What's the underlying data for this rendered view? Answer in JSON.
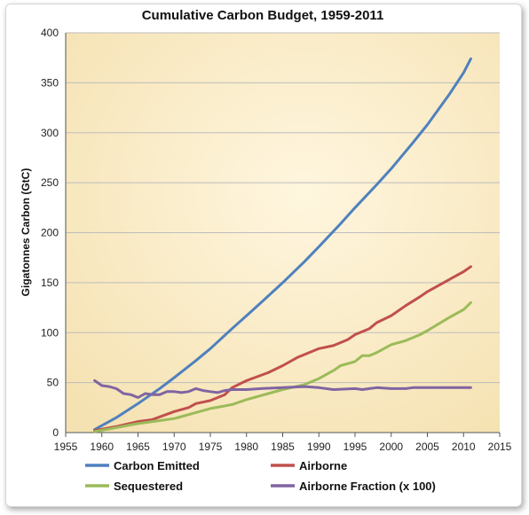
{
  "chart_data": {
    "type": "line",
    "title": "Cumulative Carbon Budget, 1959-2011",
    "xlabel": "",
    "ylabel": "Gigatonnes Carbon (GtC)",
    "xlim": [
      1955,
      2015
    ],
    "ylim": [
      0,
      400
    ],
    "x_ticks": [
      1955,
      1960,
      1965,
      1970,
      1975,
      1980,
      1985,
      1990,
      1995,
      2000,
      2005,
      2010,
      2015
    ],
    "y_ticks": [
      0,
      50,
      100,
      150,
      200,
      250,
      300,
      350,
      400
    ],
    "grid": "horizontal",
    "legend_position": "bottom",
    "series": [
      {
        "name": "Carbon Emitted",
        "color": "#4f81bd",
        "points": [
          [
            1959,
            3
          ],
          [
            1962,
            15
          ],
          [
            1965,
            29
          ],
          [
            1968,
            44
          ],
          [
            1970,
            55
          ],
          [
            1973,
            72
          ],
          [
            1975,
            84
          ],
          [
            1978,
            104
          ],
          [
            1980,
            117
          ],
          [
            1982,
            130
          ],
          [
            1985,
            150
          ],
          [
            1988,
            171
          ],
          [
            1990,
            186
          ],
          [
            1993,
            209
          ],
          [
            1995,
            225
          ],
          [
            1998,
            248
          ],
          [
            2000,
            264
          ],
          [
            2003,
            290
          ],
          [
            2005,
            308
          ],
          [
            2008,
            338
          ],
          [
            2010,
            360
          ],
          [
            2011,
            374
          ]
        ]
      },
      {
        "name": "Airborne",
        "color": "#c0504d",
        "points": [
          [
            1959,
            2
          ],
          [
            1962,
            6
          ],
          [
            1965,
            11
          ],
          [
            1967,
            13
          ],
          [
            1970,
            21
          ],
          [
            1972,
            25
          ],
          [
            1973,
            29
          ],
          [
            1975,
            32
          ],
          [
            1977,
            38
          ],
          [
            1978,
            45
          ],
          [
            1980,
            52
          ],
          [
            1983,
            60
          ],
          [
            1985,
            67
          ],
          [
            1987,
            75
          ],
          [
            1990,
            84
          ],
          [
            1992,
            87
          ],
          [
            1994,
            93
          ],
          [
            1995,
            98
          ],
          [
            1997,
            104
          ],
          [
            1998,
            110
          ],
          [
            2000,
            117
          ],
          [
            2002,
            127
          ],
          [
            2004,
            136
          ],
          [
            2005,
            141
          ],
          [
            2008,
            153
          ],
          [
            2010,
            161
          ],
          [
            2011,
            166
          ]
        ]
      },
      {
        "name": "Sequestered",
        "color": "#9bbb59",
        "points": [
          [
            1959,
            1
          ],
          [
            1962,
            5
          ],
          [
            1965,
            9
          ],
          [
            1968,
            12
          ],
          [
            1970,
            14
          ],
          [
            1971,
            16
          ],
          [
            1972,
            18
          ],
          [
            1975,
            24
          ],
          [
            1978,
            28
          ],
          [
            1980,
            33
          ],
          [
            1983,
            39
          ],
          [
            1985,
            43
          ],
          [
            1988,
            48
          ],
          [
            1990,
            54
          ],
          [
            1992,
            62
          ],
          [
            1993,
            67
          ],
          [
            1995,
            71
          ],
          [
            1996,
            77
          ],
          [
            1997,
            77
          ],
          [
            1998,
            80
          ],
          [
            2000,
            88
          ],
          [
            2002,
            92
          ],
          [
            2004,
            98
          ],
          [
            2005,
            102
          ],
          [
            2008,
            115
          ],
          [
            2010,
            123
          ],
          [
            2011,
            130
          ]
        ]
      },
      {
        "name": "Airborne Fraction (x 100)",
        "color": "#8064a2",
        "points": [
          [
            1959,
            52
          ],
          [
            1960,
            47
          ],
          [
            1961,
            46
          ],
          [
            1962,
            44
          ],
          [
            1963,
            39
          ],
          [
            1964,
            38
          ],
          [
            1965,
            35
          ],
          [
            1966,
            39
          ],
          [
            1967,
            38
          ],
          [
            1968,
            38
          ],
          [
            1969,
            41
          ],
          [
            1970,
            41
          ],
          [
            1971,
            40
          ],
          [
            1972,
            41
          ],
          [
            1973,
            44
          ],
          [
            1974,
            42
          ],
          [
            1975,
            41
          ],
          [
            1976,
            40
          ],
          [
            1977,
            42
          ],
          [
            1978,
            43
          ],
          [
            1980,
            43
          ],
          [
            1982,
            44
          ],
          [
            1985,
            45
          ],
          [
            1988,
            46
          ],
          [
            1990,
            45
          ],
          [
            1992,
            43
          ],
          [
            1995,
            44
          ],
          [
            1996,
            43
          ],
          [
            1997,
            44
          ],
          [
            1998,
            45
          ],
          [
            2000,
            44
          ],
          [
            2002,
            44
          ],
          [
            2003,
            45
          ],
          [
            2005,
            45
          ],
          [
            2008,
            45
          ],
          [
            2011,
            45
          ]
        ]
      }
    ]
  }
}
